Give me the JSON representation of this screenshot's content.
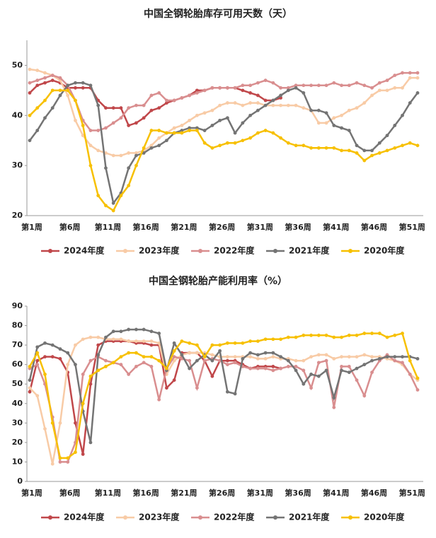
{
  "chart_data": [
    {
      "type": "line",
      "title": "中国全钢轮胎库存可用天数（天）",
      "categories": [
        "第1周",
        null,
        null,
        null,
        null,
        "第6周",
        null,
        null,
        null,
        null,
        "第11周",
        null,
        null,
        null,
        null,
        "第16周",
        null,
        null,
        null,
        null,
        "第21周",
        null,
        null,
        null,
        null,
        "第26周",
        null,
        null,
        null,
        null,
        "第31周",
        null,
        null,
        null,
        null,
        "第36周",
        null,
        null,
        null,
        null,
        "第41周",
        null,
        null,
        null,
        null,
        "第46周",
        null,
        null,
        null,
        null,
        "第51周",
        null
      ],
      "ylim": [
        20,
        55
      ],
      "yticks": [
        20,
        30,
        40,
        50
      ],
      "legend": "bottom",
      "series": [
        {
          "name": "2024年度",
          "color": "#c0474a",
          "values": [
            44.5,
            46,
            46.5,
            47,
            46.5,
            45.5,
            45.5,
            45.5,
            45.5,
            43,
            41.5,
            41.5,
            41.5,
            38,
            38.5,
            39.5,
            41,
            41.5,
            42.5,
            43,
            43.5,
            44,
            45,
            45,
            45.5,
            45.5,
            45.5,
            45.5,
            45,
            44.5,
            44,
            43,
            43,
            43.5,
            null,
            null,
            null,
            null,
            null,
            null,
            null,
            null,
            null,
            null,
            null,
            null,
            null,
            null,
            null,
            null,
            null,
            null
          ]
        },
        {
          "name": "2023年度",
          "color": "#f8cba6",
          "values": [
            49.2,
            49,
            48.5,
            48,
            47,
            44,
            39,
            36,
            34,
            33,
            32.5,
            32,
            32,
            32.5,
            32.5,
            33,
            34,
            35.5,
            36.5,
            37.5,
            38,
            39,
            40,
            40.5,
            41,
            42,
            42.5,
            42.5,
            42,
            42.5,
            42.5,
            42,
            42,
            42,
            42,
            42,
            41.5,
            41,
            38.5,
            38.5,
            39.5,
            40,
            41,
            41.5,
            42.5,
            44,
            45,
            45,
            45.5,
            45.5,
            47.5,
            47.5
          ]
        },
        {
          "name": "2022年度",
          "color": "#d98e8f",
          "values": [
            46.5,
            47,
            47.5,
            48,
            47.5,
            46,
            43,
            39,
            37,
            37,
            37.5,
            38.5,
            39.5,
            41.5,
            42,
            42,
            44,
            44.5,
            43,
            43,
            43.5,
            44,
            44.5,
            45,
            45.5,
            45.5,
            45.5,
            45.5,
            46,
            46,
            46.5,
            47,
            46.5,
            45.5,
            45.5,
            46,
            46,
            46,
            46,
            46,
            46.5,
            46,
            46,
            46.5,
            46,
            45.5,
            46.5,
            47,
            48,
            48.5,
            48.5,
            48.5
          ]
        },
        {
          "name": "2021年度",
          "color": "#747474",
          "values": [
            35,
            37,
            39.5,
            41.5,
            44,
            46,
            46.5,
            46.5,
            46,
            42,
            29.5,
            22.5,
            24.5,
            29.5,
            32,
            32.5,
            33.5,
            34,
            35,
            36.5,
            37,
            37.5,
            37.5,
            37,
            38,
            39,
            39.5,
            36.5,
            38.5,
            40,
            41,
            42,
            43,
            44,
            45,
            45.5,
            44.5,
            41,
            41,
            40.5,
            38,
            37.5,
            37,
            34,
            33,
            33,
            34.5,
            36,
            38,
            40,
            42.5,
            44.5
          ]
        },
        {
          "name": "2020年度",
          "color": "#f7c000",
          "values": [
            40,
            41.5,
            43,
            45,
            45,
            45,
            43,
            38,
            30,
            24,
            22,
            21,
            24,
            26,
            30,
            33.5,
            37,
            37,
            36.5,
            36.5,
            36.5,
            37,
            37,
            34.5,
            33.5,
            34,
            34.5,
            34.5,
            35,
            35.5,
            36.5,
            37,
            36.5,
            35.5,
            34.5,
            34,
            34,
            33.5,
            33.5,
            33.5,
            33.5,
            33,
            33,
            32.5,
            31,
            32,
            32.5,
            33,
            33.5,
            34,
            34.5,
            34
          ]
        }
      ]
    },
    {
      "type": "line",
      "title": "中国全钢轮胎产能利用率（%）",
      "categories": [
        "第1周",
        null,
        null,
        null,
        null,
        "第6周",
        null,
        null,
        null,
        null,
        "第11周",
        null,
        null,
        null,
        null,
        "第16周",
        null,
        null,
        null,
        null,
        "第21周",
        null,
        null,
        null,
        null,
        "第26周",
        null,
        null,
        null,
        null,
        "第31周",
        null,
        null,
        null,
        null,
        "第36周",
        null,
        null,
        null,
        null,
        "第41周",
        null,
        null,
        null,
        null,
        "第46周",
        null,
        null,
        null,
        null,
        "第51周",
        null
      ],
      "ylim": [
        0,
        90
      ],
      "yticks": [
        0,
        10,
        20,
        30,
        40,
        50,
        60,
        70,
        80,
        90
      ],
      "legend": "bottom",
      "series": [
        {
          "name": "2024年度",
          "color": "#c0474a",
          "values": [
            46,
            62,
            64,
            64,
            63,
            56,
            30,
            14,
            50,
            70,
            72,
            72,
            72,
            72,
            71,
            71,
            70,
            70,
            48,
            52,
            66,
            66,
            66,
            62,
            54,
            62,
            62,
            62,
            60,
            58,
            59,
            59,
            59,
            58,
            null,
            null,
            null,
            null,
            null,
            null,
            null,
            null,
            null,
            null,
            null,
            null,
            null,
            null,
            null,
            null,
            null,
            null
          ]
        },
        {
          "name": "2023年度",
          "color": "#f8cba6",
          "values": [
            48,
            44,
            27,
            9,
            30,
            60,
            70,
            73,
            74,
            74,
            73,
            73,
            73,
            72,
            72,
            72,
            72,
            71,
            55,
            62,
            65,
            66,
            66,
            66,
            65,
            64,
            64,
            64,
            64,
            64,
            63,
            63,
            64,
            63,
            63,
            62,
            62,
            64,
            65,
            65,
            63,
            64,
            64,
            64,
            65,
            64,
            64,
            63,
            62,
            60,
            55,
            52
          ]
        },
        {
          "name": "2022年度",
          "color": "#d98e8f",
          "values": [
            58,
            60,
            50,
            33,
            10,
            10,
            20,
            55,
            62,
            64,
            62,
            61,
            60,
            55,
            59,
            61,
            59,
            42,
            58,
            64,
            63,
            62,
            48,
            62,
            63,
            62,
            60,
            61,
            59,
            58,
            58,
            58,
            57,
            58,
            59,
            59,
            57,
            48,
            61,
            62,
            38,
            59,
            59,
            52,
            44,
            56,
            62,
            65,
            62,
            61,
            55,
            47
          ]
        },
        {
          "name": "2021年度",
          "color": "#747474",
          "values": [
            52,
            69,
            71,
            70,
            68,
            66,
            60,
            36,
            20,
            65,
            74,
            77,
            77,
            78,
            78,
            78,
            77,
            76,
            57,
            71,
            65,
            58,
            62,
            65,
            62,
            67,
            46,
            45,
            63,
            66,
            65,
            66,
            66,
            64,
            62,
            57,
            50,
            55,
            54,
            57,
            43,
            57,
            56,
            58,
            60,
            62,
            63,
            64,
            64,
            64,
            64,
            63
          ]
        },
        {
          "name": "2020年度",
          "color": "#f7c000",
          "values": [
            59,
            66,
            55,
            30,
            12,
            12,
            15,
            40,
            54,
            57,
            59,
            61,
            64,
            66,
            66,
            64,
            64,
            62,
            58,
            67,
            72,
            71,
            70,
            64,
            70,
            70,
            71,
            71,
            71,
            72,
            72,
            73,
            73,
            73,
            74,
            74,
            75,
            75,
            75,
            75,
            74,
            74,
            75,
            75,
            76,
            76,
            76,
            74,
            75,
            76,
            62,
            53
          ]
        }
      ]
    }
  ]
}
